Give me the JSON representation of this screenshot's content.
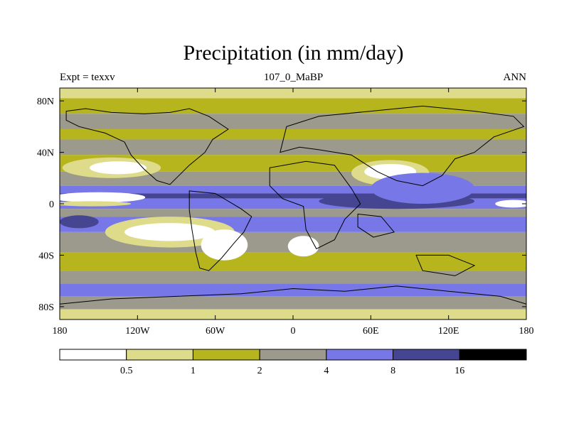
{
  "title": "Precipitation (in mm/day)",
  "subtitle_left": "Expt = texxv",
  "subtitle_center": "107_0_MaBP",
  "subtitle_right": "ANN",
  "chart_data": {
    "type": "heatmap",
    "title": "Precipitation (in mm/day)",
    "units": "mm/day",
    "x_axis": {
      "range": [
        -180,
        180
      ],
      "ticks": [
        -180,
        -120,
        -60,
        0,
        60,
        120,
        180
      ],
      "tick_labels": [
        "180",
        "120W",
        "60W",
        "0",
        "60E",
        "120E",
        "180"
      ]
    },
    "y_axis": {
      "range": [
        -90,
        90
      ],
      "ticks": [
        80,
        40,
        0,
        -40,
        -80
      ],
      "tick_labels": [
        "80N",
        "40N",
        "0",
        "40S",
        "80S"
      ]
    },
    "colorbar": {
      "levels": [
        0.5,
        1,
        2,
        4,
        8,
        16
      ],
      "level_labels": [
        "0.5",
        "1",
        "2",
        "4",
        "8",
        "16"
      ],
      "colors": [
        "#ffffff",
        "#dedc8a",
        "#b7b51d",
        "#9b9a8c",
        "#7777e8",
        "#454592",
        "#000000"
      ]
    },
    "zonal_bands": [
      {
        "lat_top": 90,
        "lat_bottom": 82,
        "color_index": 1
      },
      {
        "lat_top": 82,
        "lat_bottom": 70,
        "color_index": 2
      },
      {
        "lat_top": 70,
        "lat_bottom": 58,
        "color_index": 3
      },
      {
        "lat_top": 58,
        "lat_bottom": 50,
        "color_index": 2
      },
      {
        "lat_top": 50,
        "lat_bottom": 38,
        "color_index": 3
      },
      {
        "lat_top": 38,
        "lat_bottom": 25,
        "color_index": 2
      },
      {
        "lat_top": 25,
        "lat_bottom": 14,
        "color_index": 3
      },
      {
        "lat_top": 14,
        "lat_bottom": 8,
        "color_index": 4
      },
      {
        "lat_top": 8,
        "lat_bottom": 4,
        "color_index": 5
      },
      {
        "lat_top": 4,
        "lat_bottom": -4,
        "color_index": 4
      },
      {
        "lat_top": -4,
        "lat_bottom": -10,
        "color_index": 3
      },
      {
        "lat_top": -10,
        "lat_bottom": -22,
        "color_index": 4
      },
      {
        "lat_top": -22,
        "lat_bottom": -38,
        "color_index": 3
      },
      {
        "lat_top": -38,
        "lat_bottom": -52,
        "color_index": 2
      },
      {
        "lat_top": -52,
        "lat_bottom": -62,
        "color_index": 3
      },
      {
        "lat_top": -62,
        "lat_bottom": -72,
        "color_index": 4
      },
      {
        "lat_top": -72,
        "lat_bottom": -82,
        "color_index": 3
      },
      {
        "lat_top": -82,
        "lat_bottom": -90,
        "color_index": 1
      }
    ],
    "regions": [
      {
        "name": "north-pacific-dry",
        "lon": -140,
        "lat": 28,
        "rx": 38,
        "ry": 8,
        "color_index": 1
      },
      {
        "name": "north-pacific-dry-core",
        "lon": -135,
        "lat": 28,
        "rx": 22,
        "ry": 5,
        "color_index": 0
      },
      {
        "name": "east-pacific-wet",
        "lon": -150,
        "lat": 5,
        "rx": 36,
        "ry": 4,
        "color_index": 0
      },
      {
        "name": "east-pacific-wet-dry",
        "lon": -155,
        "lat": 0,
        "rx": 30,
        "ry": 2,
        "color_index": 1
      },
      {
        "name": "south-pacific-dry",
        "lon": -95,
        "lat": -22,
        "rx": 50,
        "ry": 12,
        "color_index": 1
      },
      {
        "name": "south-pacific-dry-core",
        "lon": -95,
        "lat": -22,
        "rx": 35,
        "ry": 7,
        "color_index": 0
      },
      {
        "name": "south-america-dry",
        "lon": -53,
        "lat": -32,
        "rx": 18,
        "ry": 12,
        "color_index": 0
      },
      {
        "name": "africa-dry",
        "lon": 8,
        "lat": -33,
        "rx": 12,
        "ry": 8,
        "color_index": 0
      },
      {
        "name": "asia-dry",
        "lon": 75,
        "lat": 24,
        "rx": 30,
        "ry": 10,
        "color_index": 1
      },
      {
        "name": "asia-dry-core",
        "lon": 75,
        "lat": 25,
        "rx": 20,
        "ry": 6,
        "color_index": 0
      },
      {
        "name": "tethys-wet",
        "lon": 80,
        "lat": 2,
        "rx": 60,
        "ry": 6,
        "color_index": 5
      },
      {
        "name": "tethys-moist",
        "lon": 100,
        "lat": 12,
        "rx": 40,
        "ry": 12,
        "color_index": 4
      },
      {
        "name": "dateline-dry",
        "lon": 170,
        "lat": 0,
        "rx": 14,
        "ry": 3,
        "color_index": 0
      },
      {
        "name": "west-pacific-wet",
        "lon": -165,
        "lat": -14,
        "rx": 15,
        "ry": 5,
        "color_index": 5
      }
    ],
    "continents": [
      {
        "name": "north-america",
        "points": [
          [
            -175,
            72
          ],
          [
            -160,
            74
          ],
          [
            -140,
            71
          ],
          [
            -115,
            70
          ],
          [
            -95,
            71
          ],
          [
            -80,
            74
          ],
          [
            -65,
            68
          ],
          [
            -50,
            58
          ],
          [
            -62,
            50
          ],
          [
            -68,
            40
          ],
          [
            -80,
            30
          ],
          [
            -88,
            22
          ],
          [
            -95,
            15
          ],
          [
            -105,
            18
          ],
          [
            -115,
            27
          ],
          [
            -125,
            38
          ],
          [
            -130,
            48
          ],
          [
            -145,
            55
          ],
          [
            -165,
            60
          ],
          [
            -175,
            65
          ]
        ]
      },
      {
        "name": "south-america",
        "points": [
          [
            -80,
            10
          ],
          [
            -60,
            8
          ],
          [
            -40,
            -4
          ],
          [
            -32,
            -10
          ],
          [
            -38,
            -22
          ],
          [
            -45,
            -30
          ],
          [
            -55,
            -42
          ],
          [
            -65,
            -52
          ],
          [
            -72,
            -50
          ],
          [
            -75,
            -38
          ],
          [
            -78,
            -20
          ],
          [
            -80,
            -5
          ]
        ]
      },
      {
        "name": "africa",
        "points": [
          [
            -18,
            28
          ],
          [
            10,
            33
          ],
          [
            32,
            30
          ],
          [
            45,
            12
          ],
          [
            52,
            0
          ],
          [
            40,
            -12
          ],
          [
            32,
            -28
          ],
          [
            18,
            -35
          ],
          [
            10,
            -20
          ],
          [
            8,
            -2
          ],
          [
            -8,
            4
          ],
          [
            -18,
            14
          ]
        ]
      },
      {
        "name": "eurasia",
        "points": [
          [
            -10,
            40
          ],
          [
            -5,
            60
          ],
          [
            20,
            68
          ],
          [
            60,
            72
          ],
          [
            100,
            76
          ],
          [
            140,
            72
          ],
          [
            170,
            68
          ],
          [
            178,
            60
          ],
          [
            155,
            52
          ],
          [
            140,
            40
          ],
          [
            125,
            35
          ],
          [
            115,
            22
          ],
          [
            100,
            14
          ],
          [
            80,
            18
          ],
          [
            65,
            25
          ],
          [
            45,
            38
          ],
          [
            20,
            42
          ],
          [
            5,
            44
          ]
        ]
      },
      {
        "name": "india",
        "points": [
          [
            50,
            -8
          ],
          [
            68,
            -10
          ],
          [
            78,
            -22
          ],
          [
            62,
            -26
          ],
          [
            50,
            -18
          ]
        ]
      },
      {
        "name": "australia",
        "points": [
          [
            95,
            -40
          ],
          [
            120,
            -40
          ],
          [
            140,
            -48
          ],
          [
            125,
            -56
          ],
          [
            100,
            -52
          ]
        ]
      },
      {
        "name": "antarctica",
        "points": [
          [
            -180,
            -78
          ],
          [
            -140,
            -74
          ],
          [
            -90,
            -72
          ],
          [
            -40,
            -70
          ],
          [
            0,
            -66
          ],
          [
            40,
            -68
          ],
          [
            80,
            -64
          ],
          [
            120,
            -68
          ],
          [
            160,
            -72
          ],
          [
            180,
            -78
          ],
          [
            180,
            -90
          ],
          [
            -180,
            -90
          ]
        ]
      }
    ]
  }
}
